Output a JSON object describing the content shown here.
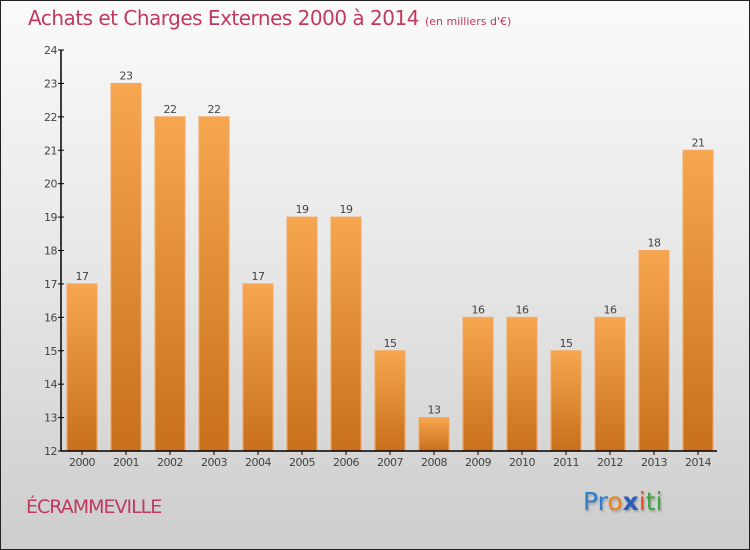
{
  "header": {
    "title": "Achats et Charges Externes 2000 à 2014",
    "unit": "(en milliers d'€)"
  },
  "footer": {
    "city": "ÉCRAMMEVILLE",
    "logo": {
      "letters": [
        "P",
        "r",
        "o",
        "x",
        "i",
        "t",
        "i"
      ],
      "colors": [
        "#2a7fd4",
        "#2a7fd4",
        "#e8821e",
        "#2a5fb8",
        "#e84a1e",
        "#3aa838",
        "#3aa838"
      ]
    }
  },
  "colors": {
    "bar_top": "#f7a650",
    "bar_bottom": "#c8701c",
    "title": "#c0395f"
  },
  "chart_data": {
    "type": "bar",
    "title": "Achats et Charges Externes 2000 à 2014",
    "subtitle": "(en milliers d'€)",
    "xlabel": "",
    "ylabel": "",
    "categories": [
      "2000",
      "2001",
      "2002",
      "2003",
      "2004",
      "2005",
      "2006",
      "2007",
      "2008",
      "2009",
      "2010",
      "2011",
      "2012",
      "2013",
      "2014"
    ],
    "values": [
      17,
      23,
      22,
      22,
      17,
      19,
      19,
      15,
      13,
      16,
      16,
      15,
      16,
      18,
      21
    ],
    "ylim": [
      12,
      24
    ],
    "yticks": [
      12,
      13,
      14,
      15,
      16,
      17,
      18,
      19,
      20,
      21,
      22,
      23,
      24
    ],
    "grid": false,
    "legend": "none"
  }
}
